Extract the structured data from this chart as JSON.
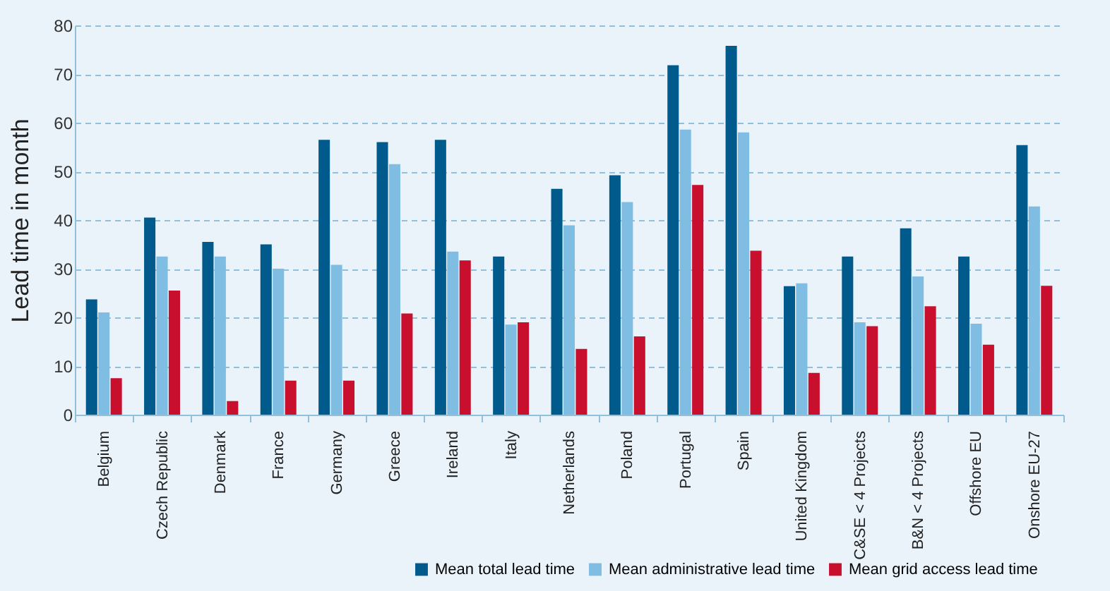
{
  "chart_data": {
    "type": "bar",
    "ylabel": "Lead time in month",
    "categories": [
      "Belgium",
      "Czech Republic",
      "Denmark",
      "France",
      "Germany",
      "Greece",
      "Ireland",
      "Italy",
      "Netherlands",
      "Poland",
      "Portugal",
      "Spain",
      "United Kingdom",
      "C&SE < 4 Projects",
      "B&N < 4 Projects",
      "Offshore EU",
      "Onshore EU-27"
    ],
    "series": [
      {
        "name": "Mean total lead time",
        "color": "#005a8c",
        "values": [
          23.7,
          40.5,
          35.5,
          35,
          56.5,
          56,
          56.5,
          32.5,
          46.4,
          49.2,
          71.8,
          75.8,
          26.4,
          32.5,
          38.3,
          32.5,
          55.4
        ]
      },
      {
        "name": "Mean administrative lead time",
        "color": "#7fbde3",
        "values": [
          21,
          32.5,
          32.5,
          30,
          30.8,
          51.5,
          33.5,
          18.5,
          38.9,
          43.7,
          58.6,
          58,
          27,
          19,
          28.4,
          18.7,
          42.8
        ]
      },
      {
        "name": "Mean grid access lead time",
        "color": "#c8102e",
        "values": [
          7.5,
          25.5,
          2.8,
          7,
          7,
          20.8,
          31.7,
          19,
          13.5,
          16.1,
          47.2,
          33.7,
          8.6,
          18.2,
          22.3,
          14.4,
          26.5
        ]
      }
    ],
    "ylim": [
      0,
      80
    ],
    "yticks": [
      0,
      10,
      20,
      30,
      40,
      50,
      60,
      70,
      80
    ],
    "grid": "y",
    "legend": "bottom right"
  }
}
